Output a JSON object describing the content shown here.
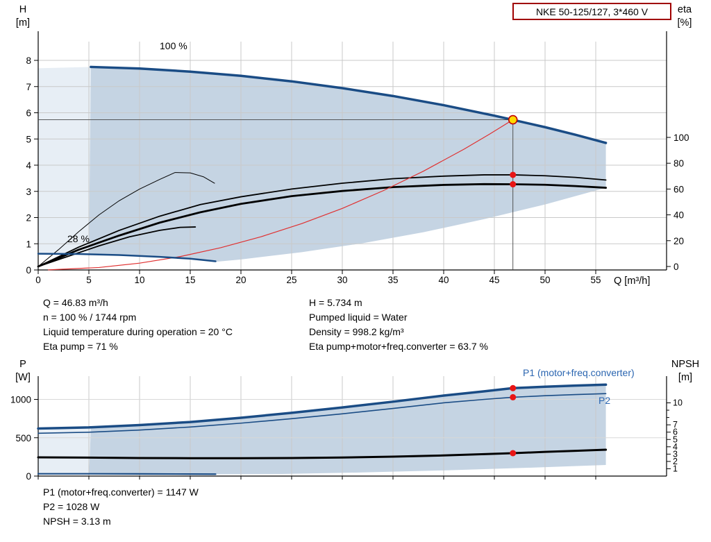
{
  "title_box": {
    "label": "NKE 50-125/127, 3*460 V"
  },
  "colors": {
    "curve_blue": "#1a4c85",
    "label_blue": "#2a65b0",
    "curve_black": "#000000",
    "curve_red": "#e03030",
    "region_main": "#c5d4e3",
    "region_light": "#e7eef5",
    "grid": "#c9c9c9",
    "grid_light": "#d8d8d8",
    "axis": "#000000",
    "guide": "#444444",
    "duty_yellow": "#ffd900",
    "duty_red": "#e81515",
    "title_border": "#a00000"
  },
  "info_panel": {
    "left": [
      "Q = 46.83 m³/h",
      "n = 100 % / 1744 rpm",
      "Liquid temperature during operation = 20 °C",
      "Eta pump = 71 %"
    ],
    "right": [
      "H = 5.734 m",
      "Pumped liquid = Water",
      "Density = 998.2 kg/m³",
      "Eta pump+motor+freq.converter = 63.7 %"
    ]
  },
  "bottom_panel": {
    "lines": [
      "P1 (motor+freq.converter) = 1147 W",
      "P2 = 1028 W",
      "NPSH = 3.13 m"
    ]
  },
  "chart_data": [
    {
      "type": "line",
      "title": "NKE 50-125/127, 3*460 V",
      "x_axis": {
        "label": "Q [m³/h]",
        "min": 0,
        "max": 62,
        "ticks": [
          0,
          5,
          10,
          15,
          20,
          25,
          30,
          35,
          40,
          45,
          50,
          55
        ]
      },
      "y_left": {
        "name": "H",
        "unit": "[m]",
        "min": 0,
        "max": 8,
        "ticks": [
          0,
          1,
          2,
          3,
          4,
          5,
          6,
          7,
          8
        ]
      },
      "y_right": {
        "name": "eta",
        "unit": "[%]",
        "min": 0,
        "max": 100,
        "ticks": [
          0,
          20,
          40,
          60,
          80,
          100
        ]
      },
      "annotations": [
        {
          "text": "100 %"
        },
        {
          "text": "28 %"
        }
      ],
      "duty_point": {
        "q": 46.83,
        "h": 5.734,
        "eta_pump": 71,
        "eta_total": 63.7
      },
      "regions": [
        {
          "name": "allowed-area-light",
          "axis": "h",
          "color": "region_light",
          "points": [
            [
              0,
              0.62
            ],
            [
              0,
              7.7
            ],
            [
              5.2,
              7.75
            ],
            [
              5.12,
              5.0
            ],
            [
              5.05,
              2.5
            ],
            [
              5.0,
              0.6
            ]
          ]
        },
        {
          "name": "allowed-area",
          "axis": "h",
          "color": "region_main",
          "points": [
            [
              5.2,
              7.75
            ],
            [
              10,
              7.69
            ],
            [
              15,
              7.57
            ],
            [
              20,
              7.41
            ],
            [
              25,
              7.2
            ],
            [
              30,
              6.94
            ],
            [
              35,
              6.64
            ],
            [
              40,
              6.29
            ],
            [
              45,
              5.89
            ],
            [
              46.83,
              5.73
            ],
            [
              50,
              5.45
            ],
            [
              53,
              5.16
            ],
            [
              56,
              4.85
            ],
            [
              56,
              3.14
            ],
            [
              50,
              2.5
            ],
            [
              44,
              1.94
            ],
            [
              38,
              1.44
            ],
            [
              32,
              1.02
            ],
            [
              26,
              0.68
            ],
            [
              20,
              0.4
            ],
            [
              17.5,
              0.31
            ],
            [
              15,
              0.43
            ],
            [
              12,
              0.5
            ],
            [
              8,
              0.57
            ],
            [
              5.0,
              0.6
            ],
            [
              5.05,
              2.5
            ],
            [
              5.12,
              5.0
            ]
          ]
        }
      ],
      "series": [
        {
          "name": "eta-curve-thin",
          "axis": "eta",
          "color": "curve_black",
          "width": 1,
          "points": [
            [
              0,
              0
            ],
            [
              2,
              13
            ],
            [
              4,
              27
            ],
            [
              6,
              40
            ],
            [
              8,
              51
            ],
            [
              10,
              60
            ],
            [
              12,
              67.5
            ],
            [
              13.5,
              72.8
            ],
            [
              15,
              72.5
            ],
            [
              16.3,
              69.5
            ],
            [
              17.4,
              64.5
            ]
          ]
        },
        {
          "name": "eta-curve-short",
          "axis": "eta",
          "color": "curve_black",
          "width": 1.8,
          "points": [
            [
              0,
              0
            ],
            [
              3,
              8
            ],
            [
              6,
              16
            ],
            [
              9,
              23
            ],
            [
              12,
              28
            ],
            [
              14,
              30.3
            ],
            [
              15.5,
              30.6
            ]
          ]
        },
        {
          "name": "eta-total-curve",
          "axis": "eta",
          "color": "curve_black",
          "width": 2.8,
          "points": [
            [
              0,
              0
            ],
            [
              4,
              13
            ],
            [
              8,
              24
            ],
            [
              12,
              34
            ],
            [
              16,
              42
            ],
            [
              20,
              48.5
            ],
            [
              25,
              54.5
            ],
            [
              30,
              58.5
            ],
            [
              35,
              61.5
            ],
            [
              40,
              63.2
            ],
            [
              44,
              63.8
            ],
            [
              46.83,
              63.7
            ],
            [
              50,
              63.3
            ],
            [
              53,
              62.3
            ],
            [
              56,
              61
            ]
          ]
        },
        {
          "name": "eta-pump-curve",
          "axis": "eta",
          "color": "curve_black",
          "width": 1.8,
          "points": [
            [
              0,
              0
            ],
            [
              4,
              15
            ],
            [
              8,
              28
            ],
            [
              12,
              39
            ],
            [
              16,
              48
            ],
            [
              20,
              54
            ],
            [
              25,
              60
            ],
            [
              30,
              64.5
            ],
            [
              35,
              68
            ],
            [
              40,
              70
            ],
            [
              44,
              71
            ],
            [
              46.83,
              71
            ],
            [
              50,
              70.3
            ],
            [
              53,
              69
            ],
            [
              56,
              67
            ]
          ]
        },
        {
          "name": "affinity-curve",
          "axis": "h",
          "color": "curve_red",
          "width": 1.2,
          "points": [
            [
              1,
              0.003
            ],
            [
              6,
              0.094
            ],
            [
              10,
              0.26
            ],
            [
              14,
              0.51
            ],
            [
              18,
              0.85
            ],
            [
              22,
              1.27
            ],
            [
              26,
              1.77
            ],
            [
              30,
              2.35
            ],
            [
              34,
              3.02
            ],
            [
              38,
              3.77
            ],
            [
              42,
              4.61
            ],
            [
              44.5,
              5.18
            ],
            [
              46.83,
              5.734
            ]
          ]
        },
        {
          "name": "pump-curve-28",
          "axis": "h",
          "color": "curve_blue",
          "width": 2.5,
          "points": [
            [
              0,
              0.62
            ],
            [
              4,
              0.61
            ],
            [
              8,
              0.57
            ],
            [
              12,
              0.5
            ],
            [
              15,
              0.43
            ],
            [
              17.5,
              0.33
            ]
          ]
        },
        {
          "name": "pump-curve-100",
          "axis": "h",
          "color": "curve_blue",
          "width": 3.5,
          "points": [
            [
              5.2,
              7.75
            ],
            [
              10,
              7.69
            ],
            [
              15,
              7.57
            ],
            [
              20,
              7.41
            ],
            [
              25,
              7.2
            ],
            [
              30,
              6.94
            ],
            [
              35,
              6.64
            ],
            [
              40,
              6.29
            ],
            [
              45,
              5.89
            ],
            [
              46.83,
              5.73
            ],
            [
              50,
              5.45
            ],
            [
              53,
              5.16
            ],
            [
              56,
              4.85
            ]
          ]
        }
      ]
    },
    {
      "type": "line",
      "x_axis": {
        "min": 0,
        "max": 62,
        "ticks": [
          0,
          5,
          10,
          15,
          20,
          25,
          30,
          35,
          40,
          45,
          50,
          55
        ],
        "labels_visible": false
      },
      "y_left": {
        "name": "P",
        "unit": "[W]",
        "min": 0,
        "ticks": [
          0,
          500,
          1000
        ]
      },
      "y_right": {
        "name": "NPSH",
        "unit": "[m]",
        "ticks": [
          1,
          2,
          3,
          4,
          5,
          6,
          7,
          10
        ],
        "minor_ticks": [
          8,
          9
        ]
      },
      "annotations": [
        {
          "text": "P1 (motor+freq.converter)"
        },
        {
          "text": "P2"
        }
      ],
      "duty_point": {
        "q": 46.83,
        "p1": 1147,
        "p2": 1028,
        "npsh": 3.13
      },
      "regions": [
        {
          "name": "allowed-area-light",
          "axis": "p",
          "color": "region_light",
          "points": [
            [
              0,
              25
            ],
            [
              0,
              595
            ],
            [
              5.2,
              638
            ],
            [
              5.1,
              300
            ],
            [
              5.0,
              28
            ]
          ]
        },
        {
          "name": "allowed-area",
          "axis": "p",
          "color": "region_main",
          "points": [
            [
              5.2,
              638
            ],
            [
              10,
              665
            ],
            [
              15,
              705
            ],
            [
              20,
              760
            ],
            [
              25,
              825
            ],
            [
              30,
              895
            ],
            [
              35,
              970
            ],
            [
              40,
              1050
            ],
            [
              44,
              1105
            ],
            [
              46.83,
              1147
            ],
            [
              50,
              1165
            ],
            [
              53,
              1180
            ],
            [
              56,
              1192
            ],
            [
              56,
              145
            ],
            [
              48,
              107
            ],
            [
              40,
              74
            ],
            [
              32,
              47
            ],
            [
              24,
              27
            ],
            [
              17.5,
              24
            ],
            [
              15,
              26
            ],
            [
              10,
              28
            ],
            [
              5.0,
              30
            ],
            [
              5.1,
              300
            ]
          ]
        }
      ],
      "series": [
        {
          "name": "power-curve-28",
          "axis": "p",
          "color": "curve_blue",
          "width": 2.2,
          "points": [
            [
              0,
              30
            ],
            [
              5,
              30
            ],
            [
              10,
              28
            ],
            [
              15,
              26
            ],
            [
              17.5,
              25
            ]
          ]
        },
        {
          "name": "npsh-curve",
          "axis": "npsh",
          "color": "curve_black",
          "width": 3,
          "points": [
            [
              0,
              2.56
            ],
            [
              5,
              2.52
            ],
            [
              10,
              2.47
            ],
            [
              15,
              2.44
            ],
            [
              20,
              2.44
            ],
            [
              25,
              2.47
            ],
            [
              30,
              2.53
            ],
            [
              35,
              2.65
            ],
            [
              40,
              2.82
            ],
            [
              44,
              3.0
            ],
            [
              46.83,
              3.13
            ],
            [
              50,
              3.3
            ],
            [
              53,
              3.45
            ],
            [
              56,
              3.6
            ]
          ]
        },
        {
          "name": "p2-curve",
          "axis": "p",
          "color": "curve_blue",
          "width": 1.6,
          "points": [
            [
              0,
              558
            ],
            [
              5,
              572
            ],
            [
              10,
              600
            ],
            [
              15,
              640
            ],
            [
              20,
              690
            ],
            [
              25,
              748
            ],
            [
              30,
              812
            ],
            [
              35,
              882
            ],
            [
              40,
              955
            ],
            [
              44,
              1000
            ],
            [
              46.83,
              1028
            ],
            [
              50,
              1048
            ],
            [
              53,
              1063
            ],
            [
              56,
              1075
            ]
          ]
        },
        {
          "name": "p1-curve",
          "axis": "p",
          "color": "curve_blue",
          "width": 3.5,
          "points": [
            [
              0,
              620
            ],
            [
              5,
              635
            ],
            [
              10,
              665
            ],
            [
              15,
              705
            ],
            [
              20,
              760
            ],
            [
              25,
              825
            ],
            [
              30,
              895
            ],
            [
              35,
              970
            ],
            [
              40,
              1050
            ],
            [
              44,
              1105
            ],
            [
              46.83,
              1147
            ],
            [
              50,
              1165
            ],
            [
              53,
              1180
            ],
            [
              56,
              1192
            ]
          ]
        }
      ]
    }
  ]
}
